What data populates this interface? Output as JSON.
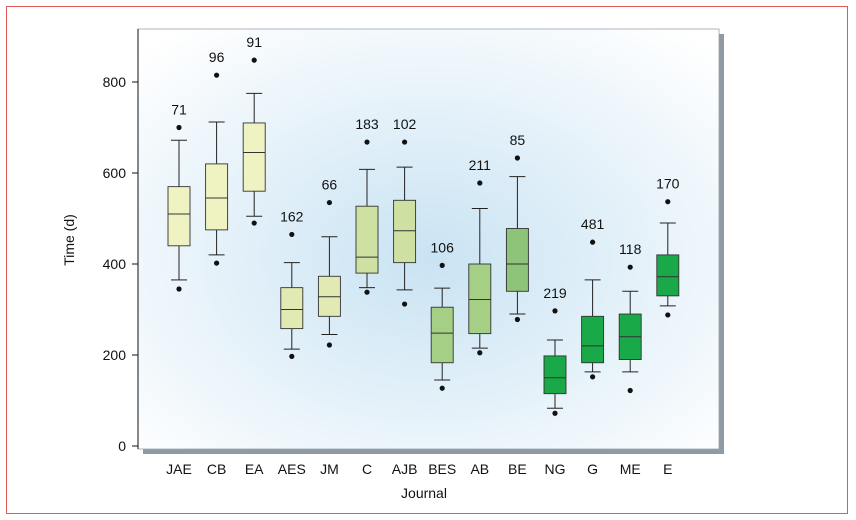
{
  "chart_data": {
    "type": "box",
    "title": "",
    "xlabel": "Journal",
    "ylabel": "Time (d)",
    "ylim": [
      0,
      880
    ],
    "yticks": [
      0,
      200,
      400,
      600,
      800
    ],
    "grid": false,
    "legend": "none",
    "categories": [
      "JAE",
      "CB",
      "EA",
      "AES",
      "JM",
      "C",
      "AJB",
      "BES",
      "AB",
      "BE",
      "NG",
      "G",
      "ME",
      "E"
    ],
    "n_labels": [
      "71",
      "96",
      "91",
      "162",
      "66",
      "183",
      "102",
      "106",
      "211",
      "85",
      "219",
      "481",
      "118",
      "170"
    ],
    "boxes": [
      {
        "whisker_low": 365,
        "q1": 440,
        "median": 510,
        "q3": 570,
        "whisker_high": 672,
        "outliers": [
          345,
          700
        ],
        "color": "#eff3c2"
      },
      {
        "whisker_low": 420,
        "q1": 475,
        "median": 545,
        "q3": 620,
        "whisker_high": 712,
        "outliers": [
          402,
          815
        ],
        "color": "#eff3c2"
      },
      {
        "whisker_low": 505,
        "q1": 560,
        "median": 645,
        "q3": 710,
        "whisker_high": 775,
        "outliers": [
          490,
          848
        ],
        "color": "#eff3c2"
      },
      {
        "whisker_low": 213,
        "q1": 258,
        "median": 300,
        "q3": 348,
        "whisker_high": 403,
        "outliers": [
          197,
          465
        ],
        "color": "#e1eab3"
      },
      {
        "whisker_low": 245,
        "q1": 285,
        "median": 328,
        "q3": 373,
        "whisker_high": 460,
        "outliers": [
          222,
          535
        ],
        "color": "#e1eab3"
      },
      {
        "whisker_low": 348,
        "q1": 380,
        "median": 415,
        "q3": 527,
        "whisker_high": 608,
        "outliers": [
          338,
          668
        ],
        "color": "#cfe0a3"
      },
      {
        "whisker_low": 343,
        "q1": 403,
        "median": 473,
        "q3": 540,
        "whisker_high": 613,
        "outliers": [
          312,
          668
        ],
        "color": "#cfe0a3"
      },
      {
        "whisker_low": 145,
        "q1": 183,
        "median": 248,
        "q3": 305,
        "whisker_high": 347,
        "outliers": [
          127,
          397
        ],
        "color": "#a6cf86"
      },
      {
        "whisker_low": 215,
        "q1": 247,
        "median": 322,
        "q3": 400,
        "whisker_high": 522,
        "outliers": [
          205,
          578
        ],
        "color": "#a6cf86"
      },
      {
        "whisker_low": 290,
        "q1": 340,
        "median": 400,
        "q3": 478,
        "whisker_high": 592,
        "outliers": [
          278,
          633
        ],
        "color": "#8dc47a"
      },
      {
        "whisker_low": 83,
        "q1": 115,
        "median": 150,
        "q3": 198,
        "whisker_high": 233,
        "outliers": [
          72,
          297
        ],
        "color": "#1aa948"
      },
      {
        "whisker_low": 163,
        "q1": 183,
        "median": 220,
        "q3": 285,
        "whisker_high": 365,
        "outliers": [
          152,
          448
        ],
        "color": "#1aa948"
      },
      {
        "whisker_low": 163,
        "q1": 190,
        "median": 240,
        "q3": 290,
        "whisker_high": 340,
        "outliers": [
          122,
          393
        ],
        "color": "#1aa948"
      },
      {
        "whisker_low": 308,
        "q1": 330,
        "median": 372,
        "q3": 420,
        "whisker_high": 490,
        "outliers": [
          288,
          537
        ],
        "color": "#1aa948"
      }
    ]
  }
}
